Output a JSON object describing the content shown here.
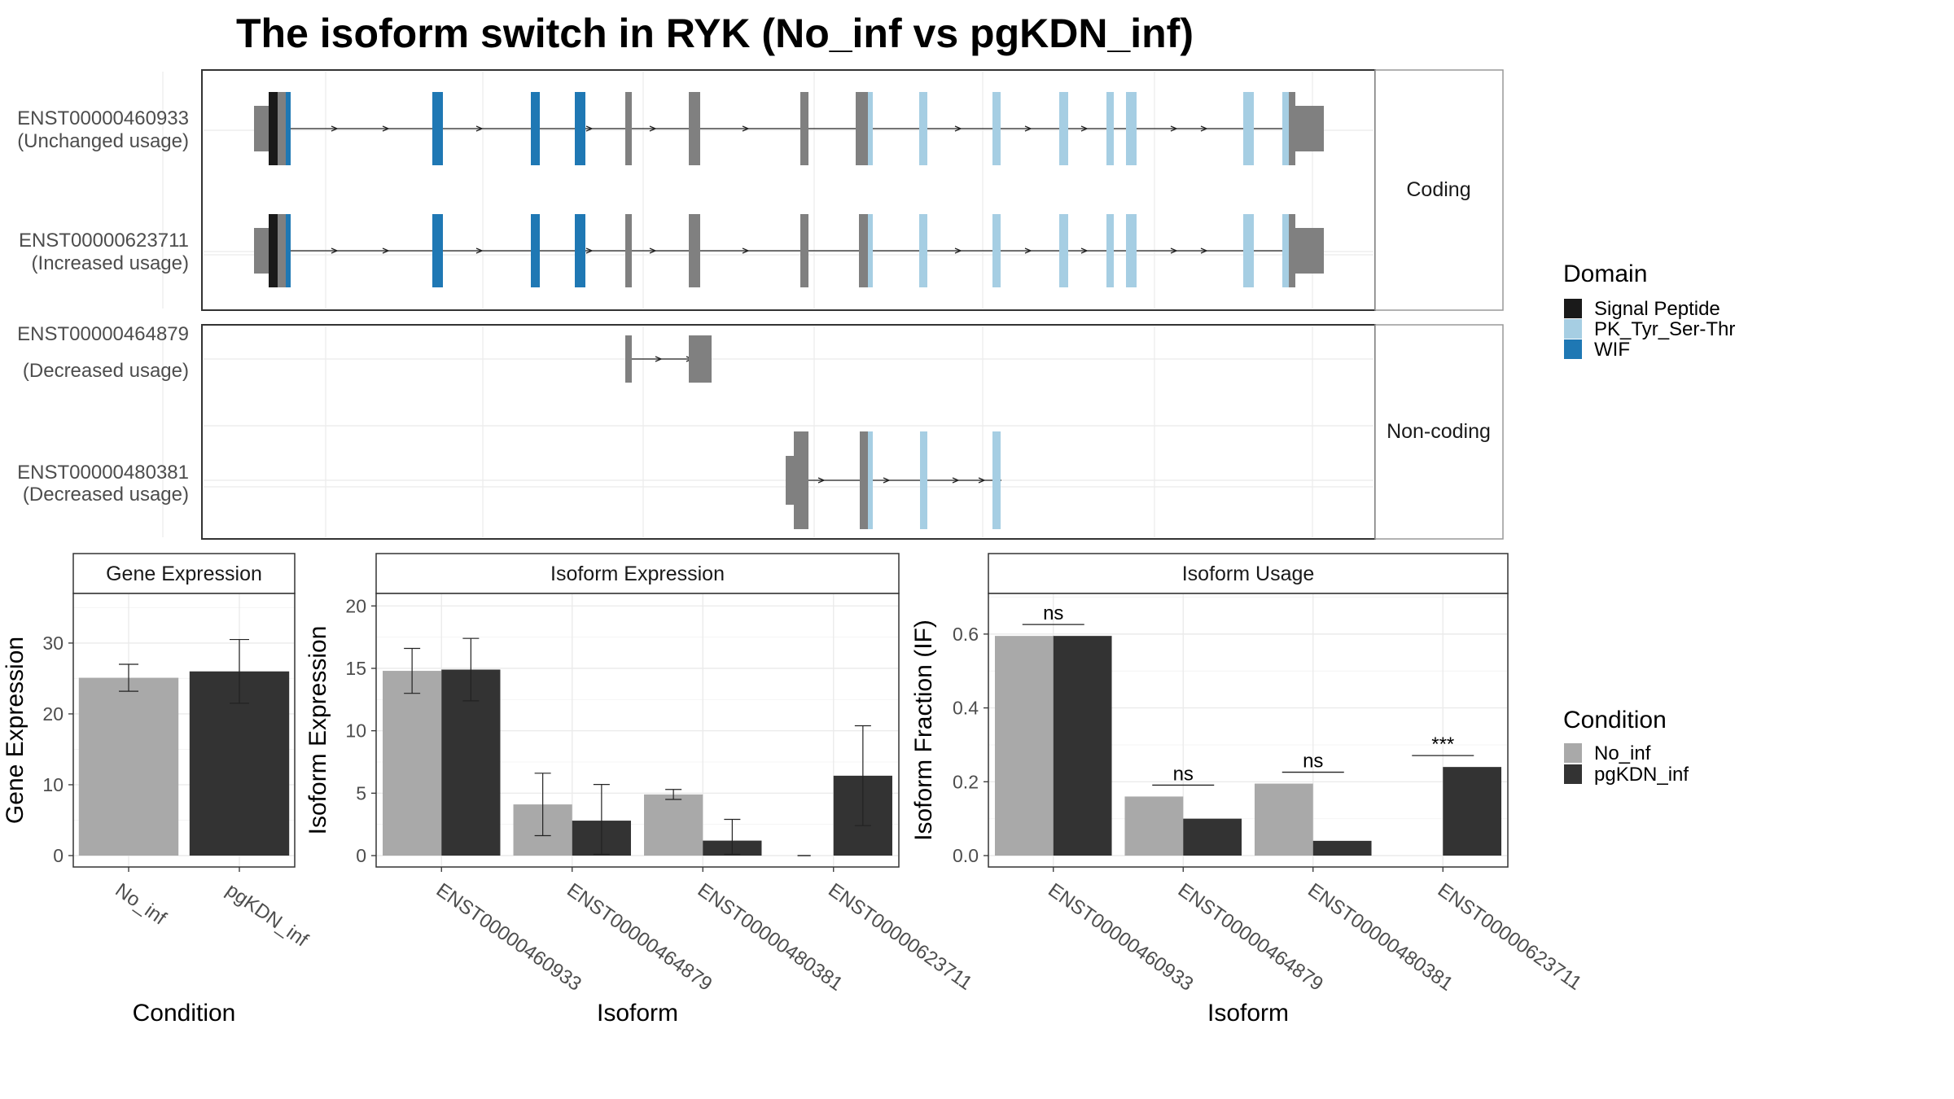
{
  "title": "The isoform switch in RYK (No_inf vs pgKDN_inf)",
  "colors": {
    "signal_peptide": "#1a1a1a",
    "pk_tyr": "#a6cee3",
    "wif": "#1f78b4",
    "no_domain": "#808080",
    "no_inf": "#a9a9a9",
    "pgkdn_inf": "#333333",
    "panel_border": "#333333",
    "strip_border": "#999999",
    "grid": "#ebebeb"
  },
  "structure": {
    "facets": [
      "Coding",
      "Non-coding"
    ],
    "isoforms": [
      {
        "id": "ENST00000460933",
        "usage": "(Unchanged usage)",
        "facet": "Coding"
      },
      {
        "id": "ENST00000623711",
        "usage": "(Increased usage)",
        "facet": "Coding"
      },
      {
        "id": "ENST00000464879",
        "usage": "(Decreased usage)",
        "facet": "Non-coding"
      },
      {
        "id": "ENST00000480381",
        "usage": "(Decreased usage)",
        "facet": "Non-coding"
      }
    ]
  },
  "legend_domain": {
    "title": "Domain",
    "items": [
      "Signal Peptide",
      "PK_Tyr_Ser-Thr",
      "WIF"
    ]
  },
  "legend_condition": {
    "title": "Condition",
    "items": [
      "No_inf",
      "pgKDN_inf"
    ]
  },
  "chart_data": [
    {
      "type": "bar",
      "title": "Gene Expression",
      "xlabel": "Condition",
      "ylabel": "Gene Expression",
      "categories": [
        "No_inf",
        "pgKDN_inf"
      ],
      "values": [
        25.1,
        26.0
      ],
      "error_low": [
        23.2,
        21.5
      ],
      "error_high": [
        27.0,
        30.5
      ],
      "ylim": [
        0,
        37
      ],
      "yticks": [
        0,
        10,
        20,
        30
      ]
    },
    {
      "type": "bar",
      "title": "Isoform Expression",
      "xlabel": "Isoform",
      "ylabel": "Isoform Expression",
      "categories": [
        "ENST00000460933",
        "ENST00000464879",
        "ENST00000480381",
        "ENST00000623711"
      ],
      "series": [
        {
          "name": "No_inf",
          "values": [
            14.8,
            4.1,
            4.9,
            0
          ],
          "error_low": [
            13.0,
            1.6,
            4.5,
            0
          ],
          "error_high": [
            16.6,
            6.6,
            5.3,
            0
          ]
        },
        {
          "name": "pgKDN_inf",
          "values": [
            14.9,
            2.8,
            1.2,
            6.4
          ],
          "error_low": [
            12.4,
            0.1,
            0.1,
            2.4
          ],
          "error_high": [
            17.4,
            5.7,
            2.9,
            10.4
          ]
        }
      ],
      "ylim": [
        0,
        21
      ],
      "yticks": [
        0,
        5,
        10,
        15,
        20
      ]
    },
    {
      "type": "bar",
      "title": "Isoform Usage",
      "xlabel": "Isoform",
      "ylabel": "Isoform Fraction (IF)",
      "categories": [
        "ENST00000460933",
        "ENST00000464879",
        "ENST00000480381",
        "ENST00000623711"
      ],
      "series": [
        {
          "name": "No_inf",
          "values": [
            0.595,
            0.16,
            0.195,
            0
          ]
        },
        {
          "name": "pgKDN_inf",
          "values": [
            0.595,
            0.1,
            0.04,
            0.24
          ]
        }
      ],
      "annotations": [
        "ns",
        "ns",
        "ns",
        "***"
      ],
      "ylim": [
        0,
        0.71
      ],
      "yticks": [
        "0.0",
        "0.2",
        "0.4",
        "0.6"
      ]
    }
  ]
}
